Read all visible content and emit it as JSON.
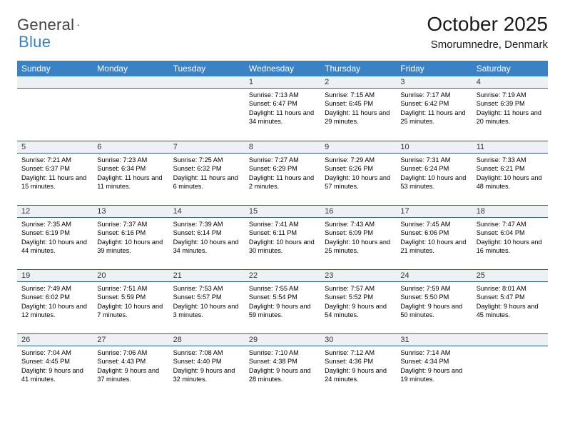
{
  "brand": {
    "name_left": "General",
    "name_right": "Blue"
  },
  "title": "October 2025",
  "location": "Smorumnedre, Denmark",
  "colors": {
    "header_bg": "#3b82c4",
    "header_text": "#ffffff",
    "daynum_bg": "#eef1f4",
    "daynum_border": "#2c5a8a",
    "body_text": "#000000",
    "logo_accent": "#3b7fbf"
  },
  "fonts": {
    "title_pt": 28,
    "location_pt": 15,
    "header_pt": 12,
    "daynum_pt": 11,
    "detail_pt": 9.2
  },
  "weekdays": [
    "Sunday",
    "Monday",
    "Tuesday",
    "Wednesday",
    "Thursday",
    "Friday",
    "Saturday"
  ],
  "weeks": [
    [
      {
        "day": "",
        "sunrise": "",
        "sunset": "",
        "daylight": ""
      },
      {
        "day": "",
        "sunrise": "",
        "sunset": "",
        "daylight": ""
      },
      {
        "day": "",
        "sunrise": "",
        "sunset": "",
        "daylight": ""
      },
      {
        "day": "1",
        "sunrise": "Sunrise: 7:13 AM",
        "sunset": "Sunset: 6:47 PM",
        "daylight": "Daylight: 11 hours and 34 minutes."
      },
      {
        "day": "2",
        "sunrise": "Sunrise: 7:15 AM",
        "sunset": "Sunset: 6:45 PM",
        "daylight": "Daylight: 11 hours and 29 minutes."
      },
      {
        "day": "3",
        "sunrise": "Sunrise: 7:17 AM",
        "sunset": "Sunset: 6:42 PM",
        "daylight": "Daylight: 11 hours and 25 minutes."
      },
      {
        "day": "4",
        "sunrise": "Sunrise: 7:19 AM",
        "sunset": "Sunset: 6:39 PM",
        "daylight": "Daylight: 11 hours and 20 minutes."
      }
    ],
    [
      {
        "day": "5",
        "sunrise": "Sunrise: 7:21 AM",
        "sunset": "Sunset: 6:37 PM",
        "daylight": "Daylight: 11 hours and 15 minutes."
      },
      {
        "day": "6",
        "sunrise": "Sunrise: 7:23 AM",
        "sunset": "Sunset: 6:34 PM",
        "daylight": "Daylight: 11 hours and 11 minutes."
      },
      {
        "day": "7",
        "sunrise": "Sunrise: 7:25 AM",
        "sunset": "Sunset: 6:32 PM",
        "daylight": "Daylight: 11 hours and 6 minutes."
      },
      {
        "day": "8",
        "sunrise": "Sunrise: 7:27 AM",
        "sunset": "Sunset: 6:29 PM",
        "daylight": "Daylight: 11 hours and 2 minutes."
      },
      {
        "day": "9",
        "sunrise": "Sunrise: 7:29 AM",
        "sunset": "Sunset: 6:26 PM",
        "daylight": "Daylight: 10 hours and 57 minutes."
      },
      {
        "day": "10",
        "sunrise": "Sunrise: 7:31 AM",
        "sunset": "Sunset: 6:24 PM",
        "daylight": "Daylight: 10 hours and 53 minutes."
      },
      {
        "day": "11",
        "sunrise": "Sunrise: 7:33 AM",
        "sunset": "Sunset: 6:21 PM",
        "daylight": "Daylight: 10 hours and 48 minutes."
      }
    ],
    [
      {
        "day": "12",
        "sunrise": "Sunrise: 7:35 AM",
        "sunset": "Sunset: 6:19 PM",
        "daylight": "Daylight: 10 hours and 44 minutes."
      },
      {
        "day": "13",
        "sunrise": "Sunrise: 7:37 AM",
        "sunset": "Sunset: 6:16 PM",
        "daylight": "Daylight: 10 hours and 39 minutes."
      },
      {
        "day": "14",
        "sunrise": "Sunrise: 7:39 AM",
        "sunset": "Sunset: 6:14 PM",
        "daylight": "Daylight: 10 hours and 34 minutes."
      },
      {
        "day": "15",
        "sunrise": "Sunrise: 7:41 AM",
        "sunset": "Sunset: 6:11 PM",
        "daylight": "Daylight: 10 hours and 30 minutes."
      },
      {
        "day": "16",
        "sunrise": "Sunrise: 7:43 AM",
        "sunset": "Sunset: 6:09 PM",
        "daylight": "Daylight: 10 hours and 25 minutes."
      },
      {
        "day": "17",
        "sunrise": "Sunrise: 7:45 AM",
        "sunset": "Sunset: 6:06 PM",
        "daylight": "Daylight: 10 hours and 21 minutes."
      },
      {
        "day": "18",
        "sunrise": "Sunrise: 7:47 AM",
        "sunset": "Sunset: 6:04 PM",
        "daylight": "Daylight: 10 hours and 16 minutes."
      }
    ],
    [
      {
        "day": "19",
        "sunrise": "Sunrise: 7:49 AM",
        "sunset": "Sunset: 6:02 PM",
        "daylight": "Daylight: 10 hours and 12 minutes."
      },
      {
        "day": "20",
        "sunrise": "Sunrise: 7:51 AM",
        "sunset": "Sunset: 5:59 PM",
        "daylight": "Daylight: 10 hours and 7 minutes."
      },
      {
        "day": "21",
        "sunrise": "Sunrise: 7:53 AM",
        "sunset": "Sunset: 5:57 PM",
        "daylight": "Daylight: 10 hours and 3 minutes."
      },
      {
        "day": "22",
        "sunrise": "Sunrise: 7:55 AM",
        "sunset": "Sunset: 5:54 PM",
        "daylight": "Daylight: 9 hours and 59 minutes."
      },
      {
        "day": "23",
        "sunrise": "Sunrise: 7:57 AM",
        "sunset": "Sunset: 5:52 PM",
        "daylight": "Daylight: 9 hours and 54 minutes."
      },
      {
        "day": "24",
        "sunrise": "Sunrise: 7:59 AM",
        "sunset": "Sunset: 5:50 PM",
        "daylight": "Daylight: 9 hours and 50 minutes."
      },
      {
        "day": "25",
        "sunrise": "Sunrise: 8:01 AM",
        "sunset": "Sunset: 5:47 PM",
        "daylight": "Daylight: 9 hours and 45 minutes."
      }
    ],
    [
      {
        "day": "26",
        "sunrise": "Sunrise: 7:04 AM",
        "sunset": "Sunset: 4:45 PM",
        "daylight": "Daylight: 9 hours and 41 minutes."
      },
      {
        "day": "27",
        "sunrise": "Sunrise: 7:06 AM",
        "sunset": "Sunset: 4:43 PM",
        "daylight": "Daylight: 9 hours and 37 minutes."
      },
      {
        "day": "28",
        "sunrise": "Sunrise: 7:08 AM",
        "sunset": "Sunset: 4:40 PM",
        "daylight": "Daylight: 9 hours and 32 minutes."
      },
      {
        "day": "29",
        "sunrise": "Sunrise: 7:10 AM",
        "sunset": "Sunset: 4:38 PM",
        "daylight": "Daylight: 9 hours and 28 minutes."
      },
      {
        "day": "30",
        "sunrise": "Sunrise: 7:12 AM",
        "sunset": "Sunset: 4:36 PM",
        "daylight": "Daylight: 9 hours and 24 minutes."
      },
      {
        "day": "31",
        "sunrise": "Sunrise: 7:14 AM",
        "sunset": "Sunset: 4:34 PM",
        "daylight": "Daylight: 9 hours and 19 minutes."
      },
      {
        "day": "",
        "sunrise": "",
        "sunset": "",
        "daylight": ""
      }
    ]
  ]
}
